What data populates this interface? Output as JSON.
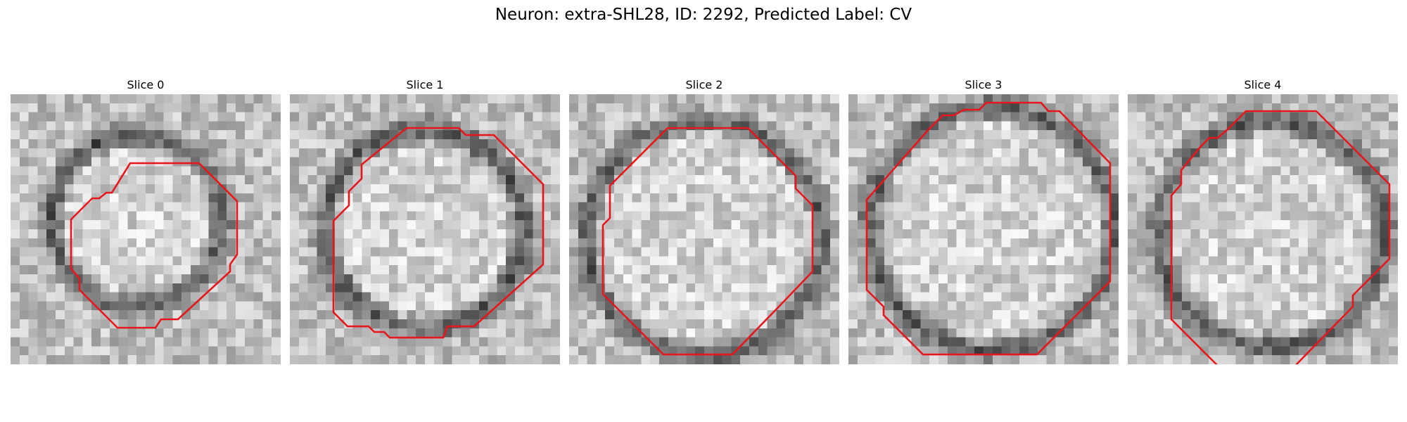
{
  "figure": {
    "title": "Neuron: extra-SHL28, ID: 2292, Predicted Label: CV"
  },
  "colors": {
    "contour": "#e8161b",
    "background": "#ffffff",
    "colormap": "grayscale"
  },
  "slices": [
    {
      "title": "Slice 0"
    },
    {
      "title": "Slice 1"
    },
    {
      "title": "Slice 2"
    },
    {
      "title": "Slice 3"
    },
    {
      "title": "Slice 4"
    }
  ]
}
